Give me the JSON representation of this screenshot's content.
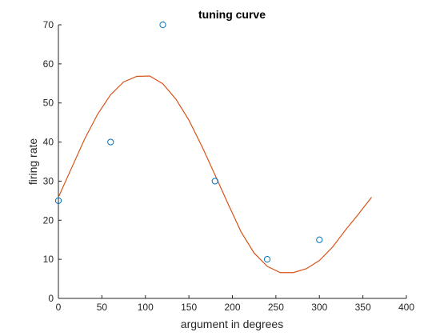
{
  "chart_data": {
    "type": "scatter",
    "title": "tuning curve",
    "xlabel": "argument in degrees",
    "ylabel": "firing rate",
    "xlim": [
      0,
      400
    ],
    "ylim": [
      0,
      70
    ],
    "xticks": [
      0,
      50,
      100,
      150,
      200,
      250,
      300,
      350,
      400
    ],
    "yticks": [
      0,
      10,
      20,
      30,
      40,
      50,
      60,
      70
    ],
    "grid": false,
    "series": [
      {
        "kind": "markers",
        "marker": "circle",
        "color": "#0072BD",
        "x": [
          0,
          60,
          120,
          180,
          240,
          300
        ],
        "y": [
          25,
          40,
          70,
          30,
          10,
          15
        ]
      },
      {
        "kind": "line",
        "color": "#D95319",
        "x": [
          0,
          15,
          30,
          45,
          60,
          75,
          90,
          105,
          120,
          135,
          150,
          165,
          180,
          195,
          210,
          225,
          240,
          255,
          270,
          285,
          300,
          315,
          330,
          345,
          360
        ],
        "y": [
          25.9,
          33.3,
          40.7,
          47.1,
          52.1,
          55.4,
          56.8,
          56.9,
          54.9,
          51.0,
          45.6,
          38.9,
          31.6,
          24.2,
          17.0,
          11.6,
          8.2,
          6.6,
          6.6,
          7.6,
          9.7,
          13.1,
          17.5,
          21.6,
          25.9
        ]
      }
    ]
  }
}
